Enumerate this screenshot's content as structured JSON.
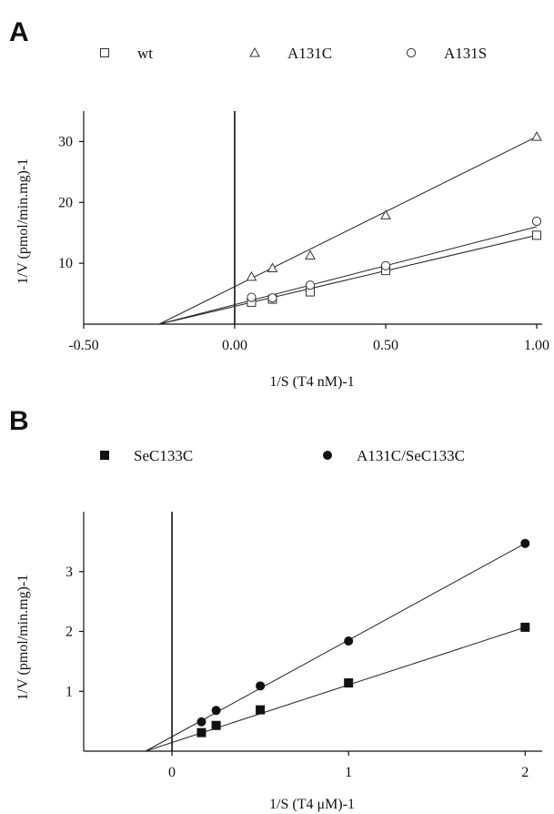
{
  "chart_data": [
    {
      "panel": "A",
      "type": "scatter",
      "xlabel": "1/S (T4 nM)-1",
      "ylabel": "1/V (pmol/min.mg)-1",
      "xlim": [
        -0.5,
        1.0
      ],
      "ylim": [
        0,
        35
      ],
      "xticks": [
        -0.5,
        0.0,
        0.5,
        1.0
      ],
      "xtick_labels": [
        "-0.50",
        "0.00",
        "0.50",
        "1.00"
      ],
      "yticks": [
        10,
        20,
        30
      ],
      "ytick_labels": [
        "10",
        "20",
        "30"
      ],
      "legend_position": "top",
      "series": [
        {
          "name": "wt",
          "marker": "open-square",
          "x": [
            0.0556,
            0.125,
            0.25,
            0.5,
            1.0
          ],
          "y": [
            3.6,
            4.1,
            5.3,
            8.8,
            14.6
          ],
          "fit": {
            "x": [
              -0.25,
              1.0
            ],
            "y": [
              0,
              14.6
            ]
          }
        },
        {
          "name": "A131C",
          "marker": "open-triangle",
          "x": [
            0.0556,
            0.125,
            0.25,
            0.5,
            1.0
          ],
          "y": [
            7.8,
            9.2,
            11.3,
            17.9,
            30.8
          ],
          "fit": {
            "x": [
              -0.25,
              1.0
            ],
            "y": [
              0,
              30.8
            ]
          }
        },
        {
          "name": "A131S",
          "marker": "open-circle",
          "x": [
            0.0556,
            0.125,
            0.25,
            0.5,
            1.0
          ],
          "y": [
            4.4,
            4.3,
            6.4,
            9.6,
            16.9
          ],
          "fit": {
            "x": [
              -0.25,
              1.0
            ],
            "y": [
              0,
              16.0
            ]
          }
        }
      ]
    },
    {
      "panel": "B",
      "type": "scatter",
      "xlabel": "1/S (T4 μM)-1",
      "ylabel": "1/V (pmol/min.mg)-1",
      "xlim": [
        -0.5,
        2.05
      ],
      "ylim": [
        0,
        4
      ],
      "xticks": [
        0,
        1,
        2
      ],
      "xtick_labels": [
        "0",
        "1",
        "2"
      ],
      "yticks": [
        1,
        2,
        3
      ],
      "ytick_labels": [
        "1",
        "2",
        "3"
      ],
      "legend_position": "top",
      "series": [
        {
          "name": "SeC133C",
          "marker": "filled-square",
          "x": [
            0.167,
            0.25,
            0.5,
            1.0,
            2.0
          ],
          "y": [
            0.31,
            0.43,
            0.69,
            1.14,
            2.07
          ],
          "fit": {
            "x": [
              -0.15,
              2.0
            ],
            "y": [
              0,
              2.07
            ]
          }
        },
        {
          "name": "A131C/SeC133C",
          "marker": "filled-circle",
          "x": [
            0.167,
            0.25,
            0.5,
            1.0,
            2.0
          ],
          "y": [
            0.49,
            0.68,
            1.09,
            1.84,
            3.47
          ],
          "fit": {
            "x": [
              -0.15,
              2.0
            ],
            "y": [
              0,
              3.47
            ]
          }
        }
      ]
    }
  ]
}
